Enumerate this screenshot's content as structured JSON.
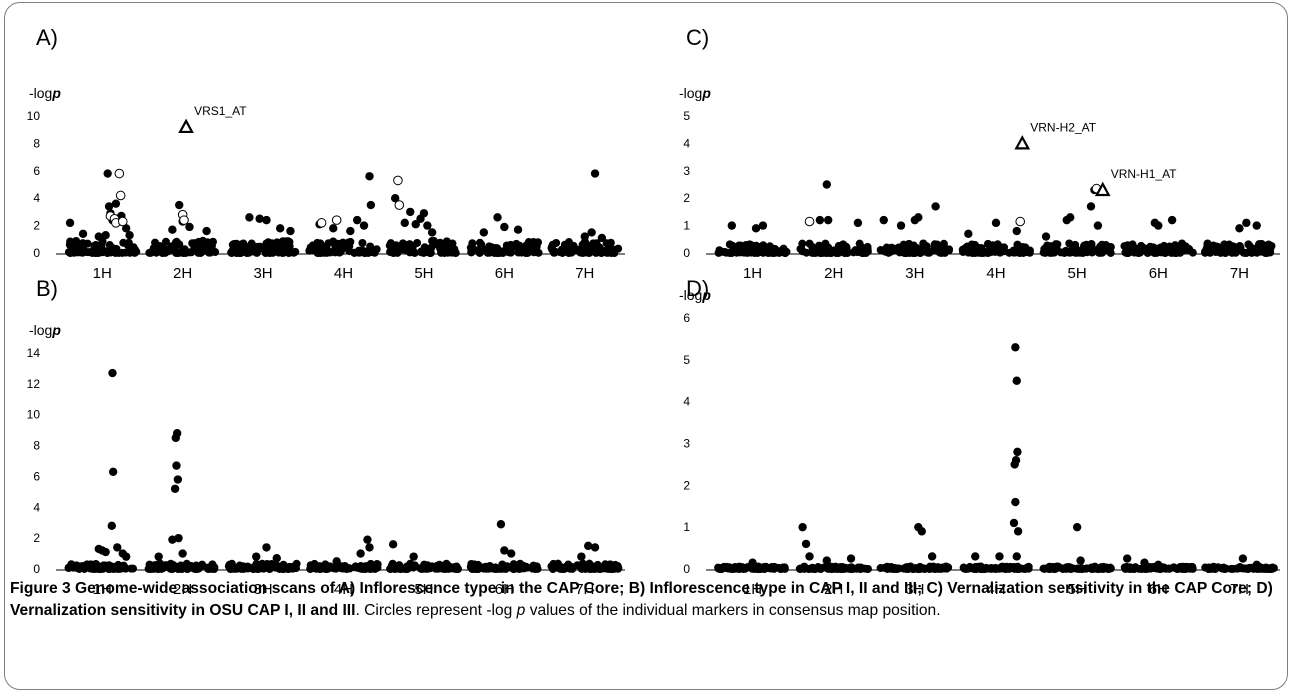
{
  "figure": {
    "caption_label": "Figure 3",
    "caption_bold": " Genome-wide association scans of A) Inflorescence type in the CAP Core; B) Inflorescence type in CAP I, II and III; C) Vernalization sensitivity in the CAP Core; D) Vernalization sensitivity in OSU CAP I, II and III",
    "caption_rest": ". Circles represent -log ",
    "caption_p": "p",
    "caption_end": " values of the individual markers in consensus map position."
  },
  "chart_data": [
    {
      "panel": "A)",
      "type": "scatter",
      "ylabel_prefix": "-log",
      "ylabel_italic": "p",
      "categories": [
        "1H",
        "2H",
        "3H",
        "4H",
        "5H",
        "6H",
        "7H"
      ],
      "ylim": [
        0,
        10
      ],
      "yticks": [
        0,
        2,
        4,
        6,
        8,
        10
      ],
      "legend": "none",
      "grid": false,
      "filled_points": [
        {
          "chr": "1H",
          "pos": 0.03,
          "y": 2.2
        },
        {
          "chr": "1H",
          "pos": 0.22,
          "y": 1.4
        },
        {
          "chr": "1H",
          "pos": 0.45,
          "y": 1.2
        },
        {
          "chr": "1H",
          "pos": 0.55,
          "y": 1.3
        },
        {
          "chr": "1H",
          "pos": 0.58,
          "y": 5.8
        },
        {
          "chr": "1H",
          "pos": 0.6,
          "y": 3.4
        },
        {
          "chr": "1H",
          "pos": 0.62,
          "y": 2.9
        },
        {
          "chr": "1H",
          "pos": 0.65,
          "y": 2.4
        },
        {
          "chr": "1H",
          "pos": 0.7,
          "y": 3.6
        },
        {
          "chr": "1H",
          "pos": 0.72,
          "y": 2.5
        },
        {
          "chr": "1H",
          "pos": 0.78,
          "y": 2.7
        },
        {
          "chr": "1H",
          "pos": 0.85,
          "y": 1.8
        },
        {
          "chr": "1H",
          "pos": 0.9,
          "y": 1.3
        },
        {
          "chr": "2H",
          "pos": 0.45,
          "y": 3.5
        },
        {
          "chr": "2H",
          "pos": 0.5,
          "y": 2.3
        },
        {
          "chr": "2H",
          "pos": 0.35,
          "y": 1.7
        },
        {
          "chr": "2H",
          "pos": 0.6,
          "y": 1.9
        },
        {
          "chr": "2H",
          "pos": 0.85,
          "y": 1.6
        },
        {
          "chr": "3H",
          "pos": 0.3,
          "y": 2.6
        },
        {
          "chr": "3H",
          "pos": 0.45,
          "y": 2.5
        },
        {
          "chr": "3H",
          "pos": 0.55,
          "y": 2.4
        },
        {
          "chr": "3H",
          "pos": 0.75,
          "y": 1.8
        },
        {
          "chr": "3H",
          "pos": 0.9,
          "y": 1.6
        },
        {
          "chr": "4H",
          "pos": 0.15,
          "y": 2.1
        },
        {
          "chr": "4H",
          "pos": 0.35,
          "y": 1.8
        },
        {
          "chr": "4H",
          "pos": 0.6,
          "y": 1.6
        },
        {
          "chr": "4H",
          "pos": 0.7,
          "y": 2.4
        },
        {
          "chr": "4H",
          "pos": 0.8,
          "y": 2.0
        },
        {
          "chr": "4H",
          "pos": 0.88,
          "y": 5.6
        },
        {
          "chr": "4H",
          "pos": 0.9,
          "y": 3.5
        },
        {
          "chr": "5H",
          "pos": 0.08,
          "y": 4.0
        },
        {
          "chr": "5H",
          "pos": 0.22,
          "y": 2.2
        },
        {
          "chr": "5H",
          "pos": 0.3,
          "y": 3.0
        },
        {
          "chr": "5H",
          "pos": 0.38,
          "y": 2.1
        },
        {
          "chr": "5H",
          "pos": 0.45,
          "y": 2.5
        },
        {
          "chr": "5H",
          "pos": 0.5,
          "y": 2.9
        },
        {
          "chr": "5H",
          "pos": 0.55,
          "y": 2.0
        },
        {
          "chr": "5H",
          "pos": 0.62,
          "y": 1.5
        },
        {
          "chr": "6H",
          "pos": 0.2,
          "y": 1.5
        },
        {
          "chr": "6H",
          "pos": 0.4,
          "y": 2.6
        },
        {
          "chr": "6H",
          "pos": 0.5,
          "y": 1.9
        },
        {
          "chr": "6H",
          "pos": 0.7,
          "y": 1.7
        },
        {
          "chr": "7H",
          "pos": 0.5,
          "y": 1.2
        },
        {
          "chr": "7H",
          "pos": 0.6,
          "y": 1.5
        },
        {
          "chr": "7H",
          "pos": 0.65,
          "y": 5.8
        },
        {
          "chr": "7H",
          "pos": 0.75,
          "y": 1.1
        }
      ],
      "open_points": [
        {
          "chr": "1H",
          "pos": 0.62,
          "y": 2.7
        },
        {
          "chr": "1H",
          "pos": 0.68,
          "y": 2.5
        },
        {
          "chr": "1H",
          "pos": 0.7,
          "y": 2.2
        },
        {
          "chr": "1H",
          "pos": 0.75,
          "y": 5.8
        },
        {
          "chr": "1H",
          "pos": 0.77,
          "y": 4.2
        },
        {
          "chr": "1H",
          "pos": 0.8,
          "y": 2.3
        },
        {
          "chr": "2H",
          "pos": 0.5,
          "y": 2.8
        },
        {
          "chr": "2H",
          "pos": 0.52,
          "y": 2.4
        },
        {
          "chr": "4H",
          "pos": 0.18,
          "y": 2.2
        },
        {
          "chr": "4H",
          "pos": 0.4,
          "y": 2.4
        },
        {
          "chr": "5H",
          "pos": 0.12,
          "y": 5.3
        },
        {
          "chr": "5H",
          "pos": 0.14,
          "y": 3.5
        }
      ],
      "annotations": [
        {
          "label": "VRS1_AT",
          "chr": "2H",
          "pos": 0.55,
          "y": 9.2,
          "marker": "triangle"
        }
      ]
    },
    {
      "panel": "B)",
      "type": "scatter",
      "ylabel_prefix": "-log",
      "ylabel_italic": "p",
      "categories": [
        "1H",
        "2H",
        "3H",
        "4H",
        "5H",
        "6H",
        "7H"
      ],
      "ylim": [
        0,
        14
      ],
      "yticks": [
        0,
        2,
        4,
        6,
        8,
        10,
        12,
        14
      ],
      "legend": "none",
      "grid": false,
      "filled_points": [
        {
          "chr": "1H",
          "pos": 0.45,
          "y": 1.3
        },
        {
          "chr": "1H",
          "pos": 0.5,
          "y": 1.2
        },
        {
          "chr": "1H",
          "pos": 0.55,
          "y": 1.1
        },
        {
          "chr": "1H",
          "pos": 0.65,
          "y": 12.7
        },
        {
          "chr": "1H",
          "pos": 0.66,
          "y": 6.3
        },
        {
          "chr": "1H",
          "pos": 0.64,
          "y": 2.8
        },
        {
          "chr": "1H",
          "pos": 0.72,
          "y": 1.4
        },
        {
          "chr": "1H",
          "pos": 0.8,
          "y": 1.0
        },
        {
          "chr": "1H",
          "pos": 0.85,
          "y": 0.8
        },
        {
          "chr": "2H",
          "pos": 0.15,
          "y": 0.8
        },
        {
          "chr": "2H",
          "pos": 0.35,
          "y": 1.9
        },
        {
          "chr": "2H",
          "pos": 0.42,
          "y": 8.8
        },
        {
          "chr": "2H",
          "pos": 0.4,
          "y": 8.5
        },
        {
          "chr": "2H",
          "pos": 0.41,
          "y": 6.7
        },
        {
          "chr": "2H",
          "pos": 0.43,
          "y": 5.8
        },
        {
          "chr": "2H",
          "pos": 0.39,
          "y": 5.2
        },
        {
          "chr": "2H",
          "pos": 0.44,
          "y": 2.0
        },
        {
          "chr": "2H",
          "pos": 0.5,
          "y": 1.0
        },
        {
          "chr": "3H",
          "pos": 0.4,
          "y": 0.8
        },
        {
          "chr": "3H",
          "pos": 0.55,
          "y": 1.4
        },
        {
          "chr": "3H",
          "pos": 0.7,
          "y": 0.7
        },
        {
          "chr": "4H",
          "pos": 0.4,
          "y": 0.5
        },
        {
          "chr": "4H",
          "pos": 0.75,
          "y": 1.0
        },
        {
          "chr": "4H",
          "pos": 0.85,
          "y": 1.9
        },
        {
          "chr": "4H",
          "pos": 0.88,
          "y": 1.4
        },
        {
          "chr": "5H",
          "pos": 0.05,
          "y": 1.6
        },
        {
          "chr": "5H",
          "pos": 0.35,
          "y": 0.8
        },
        {
          "chr": "6H",
          "pos": 0.45,
          "y": 2.9
        },
        {
          "chr": "6H",
          "pos": 0.5,
          "y": 1.2
        },
        {
          "chr": "6H",
          "pos": 0.6,
          "y": 1.0
        },
        {
          "chr": "7H",
          "pos": 0.55,
          "y": 1.5
        },
        {
          "chr": "7H",
          "pos": 0.65,
          "y": 1.4
        },
        {
          "chr": "7H",
          "pos": 0.45,
          "y": 0.8
        }
      ],
      "open_points": [],
      "annotations": []
    },
    {
      "panel": "C)",
      "type": "scatter",
      "ylabel_prefix": "-log",
      "ylabel_italic": "p",
      "categories": [
        "1H",
        "2H",
        "3H",
        "4H",
        "5H",
        "6H",
        "7H"
      ],
      "ylim": [
        0,
        5
      ],
      "yticks": [
        0,
        1,
        2,
        3,
        4,
        5
      ],
      "legend": "none",
      "grid": false,
      "filled_points": [
        {
          "chr": "1H",
          "pos": 0.2,
          "y": 1.0
        },
        {
          "chr": "1H",
          "pos": 0.55,
          "y": 0.9
        },
        {
          "chr": "1H",
          "pos": 0.65,
          "y": 1.0
        },
        {
          "chr": "2H",
          "pos": 0.3,
          "y": 1.2
        },
        {
          "chr": "2H",
          "pos": 0.4,
          "y": 2.5
        },
        {
          "chr": "2H",
          "pos": 0.42,
          "y": 1.2
        },
        {
          "chr": "2H",
          "pos": 0.85,
          "y": 1.1
        },
        {
          "chr": "3H",
          "pos": 0.05,
          "y": 1.2
        },
        {
          "chr": "3H",
          "pos": 0.3,
          "y": 1.0
        },
        {
          "chr": "3H",
          "pos": 0.5,
          "y": 1.2
        },
        {
          "chr": "3H",
          "pos": 0.55,
          "y": 1.3
        },
        {
          "chr": "3H",
          "pos": 0.8,
          "y": 1.7
        },
        {
          "chr": "4H",
          "pos": 0.1,
          "y": 0.7
        },
        {
          "chr": "4H",
          "pos": 0.5,
          "y": 1.1
        },
        {
          "chr": "4H",
          "pos": 0.8,
          "y": 0.8
        },
        {
          "chr": "5H",
          "pos": 0.05,
          "y": 0.6
        },
        {
          "chr": "5H",
          "pos": 0.35,
          "y": 1.2
        },
        {
          "chr": "5H",
          "pos": 0.4,
          "y": 1.3
        },
        {
          "chr": "5H",
          "pos": 0.7,
          "y": 1.7
        },
        {
          "chr": "5H",
          "pos": 0.75,
          "y": 2.3
        },
        {
          "chr": "5H",
          "pos": 0.8,
          "y": 1.0
        },
        {
          "chr": "6H",
          "pos": 0.45,
          "y": 1.1
        },
        {
          "chr": "6H",
          "pos": 0.5,
          "y": 1.0
        },
        {
          "chr": "6H",
          "pos": 0.7,
          "y": 1.2
        },
        {
          "chr": "7H",
          "pos": 0.5,
          "y": 0.9
        },
        {
          "chr": "7H",
          "pos": 0.6,
          "y": 1.1
        },
        {
          "chr": "7H",
          "pos": 0.75,
          "y": 1.0
        }
      ],
      "open_points": [
        {
          "chr": "2H",
          "pos": 0.15,
          "y": 1.15
        },
        {
          "chr": "4H",
          "pos": 0.85,
          "y": 1.15
        },
        {
          "chr": "5H",
          "pos": 0.78,
          "y": 2.35
        }
      ],
      "annotations": [
        {
          "label": "VRN-H2_AT",
          "chr": "4H",
          "pos": 0.88,
          "y": 4.0,
          "marker": "triangle"
        },
        {
          "label": "VRN-H1_AT",
          "chr": "5H",
          "pos": 0.87,
          "y": 2.3,
          "marker": "triangle"
        }
      ]
    },
    {
      "panel": "D)",
      "type": "scatter",
      "ylabel_prefix": "-log",
      "ylabel_italic": "p",
      "categories": [
        "1H",
        "2H",
        "3H",
        "4H",
        "5H",
        "6H",
        "7H"
      ],
      "ylim": [
        0,
        6
      ],
      "yticks": [
        0,
        1,
        2,
        3,
        4,
        5,
        6
      ],
      "legend": "none",
      "grid": false,
      "filled_points": [
        {
          "chr": "1H",
          "pos": 0.5,
          "y": 0.15
        },
        {
          "chr": "2H",
          "pos": 0.05,
          "y": 1.0
        },
        {
          "chr": "2H",
          "pos": 0.1,
          "y": 0.6
        },
        {
          "chr": "2H",
          "pos": 0.15,
          "y": 0.3
        },
        {
          "chr": "2H",
          "pos": 0.4,
          "y": 0.2
        },
        {
          "chr": "2H",
          "pos": 0.75,
          "y": 0.25
        },
        {
          "chr": "3H",
          "pos": 0.55,
          "y": 1.0
        },
        {
          "chr": "3H",
          "pos": 0.6,
          "y": 0.9
        },
        {
          "chr": "3H",
          "pos": 0.75,
          "y": 0.3
        },
        {
          "chr": "4H",
          "pos": 0.2,
          "y": 0.3
        },
        {
          "chr": "4H",
          "pos": 0.55,
          "y": 0.3
        },
        {
          "chr": "4H",
          "pos": 0.78,
          "y": 5.3
        },
        {
          "chr": "4H",
          "pos": 0.8,
          "y": 4.5
        },
        {
          "chr": "4H",
          "pos": 0.81,
          "y": 2.8
        },
        {
          "chr": "4H",
          "pos": 0.79,
          "y": 2.6
        },
        {
          "chr": "4H",
          "pos": 0.77,
          "y": 2.5
        },
        {
          "chr": "4H",
          "pos": 0.78,
          "y": 1.6
        },
        {
          "chr": "4H",
          "pos": 0.76,
          "y": 1.1
        },
        {
          "chr": "4H",
          "pos": 0.82,
          "y": 0.9
        },
        {
          "chr": "4H",
          "pos": 0.8,
          "y": 0.3
        },
        {
          "chr": "5H",
          "pos": 0.5,
          "y": 1.0
        },
        {
          "chr": "5H",
          "pos": 0.55,
          "y": 0.2
        },
        {
          "chr": "6H",
          "pos": 0.05,
          "y": 0.25
        },
        {
          "chr": "6H",
          "pos": 0.3,
          "y": 0.15
        },
        {
          "chr": "6H",
          "pos": 0.5,
          "y": 0.1
        },
        {
          "chr": "7H",
          "pos": 0.55,
          "y": 0.25
        },
        {
          "chr": "7H",
          "pos": 0.75,
          "y": 0.1
        }
      ],
      "open_points": [],
      "annotations": []
    }
  ]
}
